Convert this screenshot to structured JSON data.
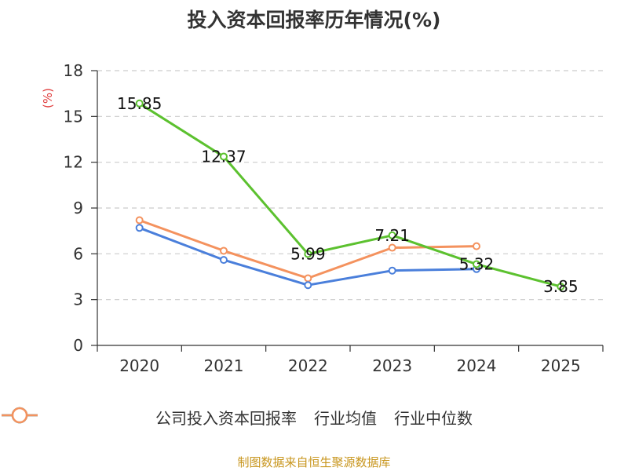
{
  "chart_data": {
    "type": "line",
    "title": "投入资本回报率历年情况(%)",
    "ylabel": "(%)",
    "xlabel": "",
    "categories": [
      "2020",
      "2021",
      "2022",
      "2023",
      "2024",
      "2025"
    ],
    "yticks": [
      0,
      3,
      6,
      9,
      12,
      15,
      18
    ],
    "ylim": [
      0,
      18
    ],
    "grid": true,
    "legend_position": "bottom",
    "series": [
      {
        "name": "公司投入资本回报率",
        "color": "#5cc12f",
        "values": [
          15.85,
          12.37,
          5.99,
          7.21,
          5.32,
          3.85
        ],
        "labels": [
          "15.85",
          "12.37",
          "5.99",
          "7.21",
          "5.32",
          "3.85"
        ]
      },
      {
        "name": "行业均值",
        "color": "#4a7fdb",
        "values": [
          7.7,
          5.6,
          3.95,
          4.9,
          5.0,
          null
        ]
      },
      {
        "name": "行业中位数",
        "color": "#f4925e",
        "values": [
          8.2,
          6.2,
          4.4,
          6.4,
          6.5,
          null
        ]
      }
    ]
  },
  "source": "制图数据来自恒生聚源数据库"
}
